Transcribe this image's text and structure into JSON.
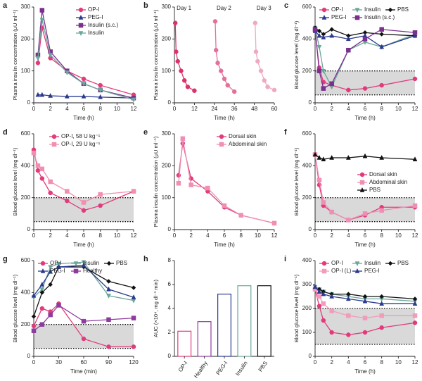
{
  "chart_data": [
    {
      "type": "line",
      "label": "a",
      "xlabel": "Time (h)",
      "ylabel": "Plasma insulin concentration (μU ml⁻¹)",
      "x": [
        0.5,
        1,
        2,
        4,
        6,
        8,
        12
      ],
      "xlim": [
        0,
        12
      ],
      "xticks": [
        0,
        2,
        4,
        6,
        8,
        10,
        12
      ],
      "ylim": [
        0,
        300
      ],
      "yticks": [
        0,
        100,
        200,
        300
      ],
      "legend": "upper right",
      "series": [
        {
          "name": "OP-I",
          "color": "#e23a7b",
          "marker": "circle",
          "values": [
            125,
            235,
            140,
            100,
            75,
            55,
            25
          ]
        },
        {
          "name": "PEG-I",
          "color": "#2b3a8f",
          "marker": "triangle",
          "values": [
            25,
            25,
            22,
            20,
            20,
            18,
            15
          ]
        },
        {
          "name": "Insulin (s.c.)",
          "color": "#7b2f8e",
          "marker": "square",
          "values": [
            150,
            290,
            160,
            100,
            60,
            40,
            15
          ]
        },
        {
          "name": "Insulin",
          "color": "#6aa79a",
          "marker": "triangle-down",
          "values": [
            140,
            260,
            150,
            95,
            60,
            40,
            10
          ]
        }
      ]
    },
    {
      "type": "line",
      "label": "b",
      "xlabel": "Time (h)",
      "ylabel": "Plasma insulin concentration (μU ml⁻¹)",
      "xlim": [
        0,
        60
      ],
      "xticks": [
        0,
        12,
        24,
        36,
        48,
        60
      ],
      "ylim": [
        0,
        300
      ],
      "yticks": [
        0,
        100,
        200,
        300
      ],
      "annotations": [
        "Day 1",
        "Day 2",
        "Day 3"
      ],
      "series": [
        {
          "color": "#d9336e",
          "marker": "circle",
          "x": [
            0.5,
            1,
            2,
            4,
            6,
            8,
            12
          ],
          "values": [
            250,
            160,
            130,
            100,
            70,
            50,
            38
          ]
        },
        {
          "color": "#e56f9b",
          "marker": "circle",
          "x": [
            24.5,
            25,
            26,
            28,
            30,
            32,
            36
          ],
          "values": [
            255,
            165,
            125,
            100,
            75,
            55,
            35
          ]
        },
        {
          "color": "#f0a8c3",
          "marker": "circle",
          "x": [
            48.5,
            49,
            50,
            52,
            54,
            56,
            60
          ],
          "values": [
            250,
            160,
            130,
            100,
            70,
            50,
            40
          ]
        }
      ]
    },
    {
      "type": "line",
      "label": "c",
      "xlabel": "Time (h)",
      "ylabel": "Blood glucose level (mg dl⁻¹)",
      "x": [
        0,
        0.5,
        1,
        2,
        4,
        6,
        8,
        12
      ],
      "xlim": [
        0,
        12
      ],
      "xticks": [
        0,
        2,
        4,
        6,
        8,
        10,
        12
      ],
      "ylim": [
        0,
        600
      ],
      "yticks": [
        0,
        200,
        400,
        600
      ],
      "reference_band": [
        50,
        200
      ],
      "legend": "upper left",
      "series": [
        {
          "name": "OP-I",
          "color": "#e23a7b",
          "marker": "circle",
          "values": [
            450,
            220,
            130,
            110,
            80,
            90,
            110,
            150
          ]
        },
        {
          "name": "Insulin",
          "color": "#6aa79a",
          "marker": "triangle-down",
          "values": [
            470,
            350,
            200,
            100,
            330,
            380,
            350,
            430
          ]
        },
        {
          "name": "PBS",
          "color": "#111111",
          "marker": "diamond",
          "values": [
            470,
            450,
            430,
            460,
            420,
            440,
            430,
            420
          ]
        },
        {
          "name": "PEG-I",
          "color": "#2b3a8f",
          "marker": "triangle",
          "values": [
            450,
            420,
            410,
            420,
            400,
            420,
            350,
            420
          ]
        },
        {
          "name": "Insulin (s.c.)",
          "color": "#7b2f8e",
          "marker": "square",
          "values": [
            460,
            200,
            90,
            120,
            330,
            400,
            460,
            440
          ]
        }
      ]
    },
    {
      "type": "line",
      "label": "d",
      "xlabel": "Time (h)",
      "ylabel": "Blood glucose level (mg dl⁻¹)",
      "x": [
        0,
        0.5,
        1,
        2,
        4,
        6,
        8,
        12
      ],
      "xlim": [
        0,
        12
      ],
      "xticks": [
        0,
        2,
        4,
        6,
        8,
        10,
        12
      ],
      "ylim": [
        0,
        600
      ],
      "yticks": [
        0,
        200,
        400,
        600
      ],
      "reference_band": [
        50,
        200
      ],
      "legend": "upper center",
      "series": [
        {
          "name": "OP-I, 58 U kg⁻¹",
          "color": "#e23a7b",
          "marker": "circle",
          "values": [
            500,
            370,
            320,
            230,
            180,
            120,
            150,
            240
          ]
        },
        {
          "name": "OP-I, 29 U kg⁻¹",
          "color": "#f08fb0",
          "marker": "square",
          "values": [
            480,
            400,
            380,
            300,
            240,
            170,
            220,
            240
          ]
        }
      ]
    },
    {
      "type": "line",
      "label": "e",
      "xlabel": "Time (h)",
      "ylabel": "Plasma insulin concentration (μU ml⁻¹)",
      "x": [
        0.5,
        1,
        2,
        4,
        6,
        8,
        12
      ],
      "xlim": [
        0,
        12
      ],
      "xticks": [
        0,
        2,
        4,
        6,
        8,
        10,
        12
      ],
      "ylim": [
        0,
        300
      ],
      "yticks": [
        0,
        100,
        200,
        300
      ],
      "legend": "upper right",
      "series": [
        {
          "name": "Dorsal skin",
          "color": "#e23a7b",
          "marker": "circle",
          "values": [
            170,
            270,
            160,
            120,
            70,
            45,
            20
          ]
        },
        {
          "name": "Abdominal skin",
          "color": "#ef8fb3",
          "marker": "square",
          "values": [
            145,
            285,
            140,
            130,
            75,
            45,
            20
          ]
        }
      ]
    },
    {
      "type": "line",
      "label": "f",
      "xlabel": "Time (h)",
      "ylabel": "Blood glucose level (mg dl⁻¹)",
      "x": [
        0,
        0.5,
        1,
        2,
        4,
        6,
        8,
        12
      ],
      "xlim": [
        0,
        12
      ],
      "xticks": [
        0,
        2,
        4,
        6,
        8,
        10,
        12
      ],
      "ylim": [
        0,
        600
      ],
      "yticks": [
        0,
        200,
        400,
        600
      ],
      "reference_band": [
        50,
        200
      ],
      "legend": "center right",
      "series": [
        {
          "name": "Dorsal skin",
          "color": "#e23a7b",
          "marker": "circle",
          "values": [
            470,
            280,
            150,
            110,
            60,
            90,
            140,
            140
          ]
        },
        {
          "name": "Abdominal skin",
          "color": "#ef8fb3",
          "marker": "square",
          "values": [
            470,
            310,
            170,
            110,
            60,
            100,
            120,
            150
          ]
        },
        {
          "name": "PBS",
          "color": "#111111",
          "marker": "triangle",
          "values": [
            470,
            450,
            440,
            450,
            450,
            460,
            450,
            440
          ]
        }
      ]
    },
    {
      "type": "line",
      "label": "g",
      "xlabel": "Time (min)",
      "ylabel": "Blood glucose level (mg dl⁻¹)",
      "x": [
        0,
        10,
        20,
        30,
        60,
        90,
        120
      ],
      "xlim": [
        0,
        120
      ],
      "xticks": [
        0,
        30,
        60,
        90,
        120
      ],
      "ylim": [
        0,
        600
      ],
      "yticks": [
        0,
        200,
        400,
        600
      ],
      "reference_band": [
        50,
        200
      ],
      "legend": "upper left",
      "series": [
        {
          "name": "OP-I",
          "color": "#e23a7b",
          "marker": "circle",
          "values": [
            190,
            300,
            280,
            330,
            110,
            60,
            60
          ]
        },
        {
          "name": "Insulin",
          "color": "#6aa79a",
          "marker": "triangle-down",
          "values": [
            370,
            420,
            560,
            580,
            590,
            380,
            350
          ]
        },
        {
          "name": "PBS",
          "color": "#111111",
          "marker": "diamond",
          "values": [
            250,
            400,
            450,
            560,
            560,
            470,
            430
          ]
        },
        {
          "name": "PEG-I",
          "color": "#2b3a8f",
          "marker": "triangle",
          "values": [
            380,
            450,
            530,
            560,
            570,
            420,
            370
          ]
        },
        {
          "name": "Healthy",
          "color": "#8e3b9e",
          "marker": "square",
          "values": [
            160,
            200,
            260,
            320,
            220,
            230,
            240
          ]
        }
      ]
    },
    {
      "type": "bar",
      "label": "h",
      "ylabel": "AUC (×10⁴, mg dl⁻¹ min)",
      "categories": [
        "OP-I",
        "Healthy",
        "PEG-I",
        "Insulin",
        "PBS"
      ],
      "values": [
        2.1,
        2.9,
        5.2,
        5.9,
        5.9
      ],
      "colors": [
        "#e23a7b",
        "#8e3b9e",
        "#2b3a8f",
        "#6aa79a",
        "#111111"
      ],
      "ylim": [
        0,
        8
      ],
      "yticks": [
        0,
        2,
        4,
        6,
        8
      ]
    },
    {
      "type": "line",
      "label": "i",
      "xlabel": "Time (h)",
      "ylabel": "Blood glucose level (mg dl⁻¹)",
      "x": [
        0,
        0.5,
        1,
        2,
        4,
        6,
        8,
        12
      ],
      "xlim": [
        0,
        12
      ],
      "xticks": [
        0,
        2,
        4,
        6,
        8,
        10,
        12
      ],
      "ylim": [
        0,
        400
      ],
      "yticks": [
        0,
        100,
        200,
        300,
        400
      ],
      "reference_band": [
        50,
        200
      ],
      "legend": "upper left",
      "series": [
        {
          "name": "OP-I",
          "color": "#e23a7b",
          "marker": "circle",
          "values": [
            280,
            210,
            150,
            100,
            90,
            100,
            120,
            140
          ]
        },
        {
          "name": "Insulin",
          "color": "#6aa79a",
          "marker": "triangle-down",
          "values": [
            290,
            280,
            270,
            260,
            250,
            240,
            240,
            230
          ]
        },
        {
          "name": "PBS",
          "color": "#111111",
          "marker": "diamond",
          "values": [
            280,
            280,
            270,
            260,
            260,
            250,
            250,
            240
          ]
        },
        {
          "name": "OP-I (L)",
          "color": "#f29bbb",
          "marker": "square",
          "values": [
            280,
            250,
            220,
            190,
            170,
            160,
            170,
            170
          ]
        },
        {
          "name": "PEG-I",
          "color": "#2b3a8f",
          "marker": "triangle",
          "values": [
            290,
            270,
            260,
            250,
            240,
            230,
            220,
            220
          ]
        }
      ]
    }
  ]
}
